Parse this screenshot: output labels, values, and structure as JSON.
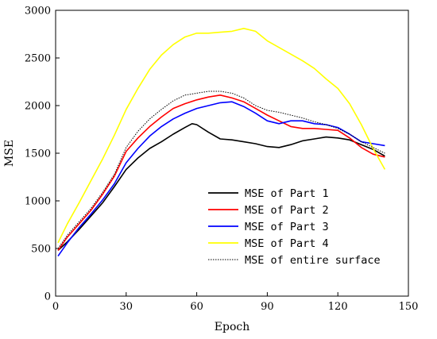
{
  "chart_data": {
    "type": "line",
    "xlabel": "Epoch",
    "ylabel": "MSE",
    "xlim": [
      0,
      150
    ],
    "ylim": [
      0,
      3000
    ],
    "xticks": [
      0,
      30,
      60,
      90,
      120,
      150
    ],
    "yticks": [
      0,
      500,
      1000,
      1500,
      2000,
      2500,
      3000
    ],
    "grid": false,
    "legend_position": "bottom-right",
    "series": [
      {
        "name": "MSE of Part 1",
        "color": "#000000",
        "style": "solid",
        "x": [
          1,
          5,
          10,
          15,
          20,
          25,
          30,
          35,
          40,
          45,
          50,
          55,
          58,
          60,
          65,
          70,
          75,
          80,
          85,
          90,
          95,
          100,
          105,
          110,
          115,
          120,
          125,
          130,
          135,
          140
        ],
        "y": [
          480,
          570,
          700,
          840,
          980,
          1150,
          1330,
          1450,
          1550,
          1620,
          1700,
          1770,
          1810,
          1800,
          1720,
          1650,
          1640,
          1620,
          1600,
          1570,
          1560,
          1590,
          1630,
          1650,
          1670,
          1660,
          1640,
          1590,
          1540,
          1470
        ]
      },
      {
        "name": "MSE of Part 2",
        "color": "#ff0000",
        "style": "solid",
        "x": [
          1,
          5,
          10,
          15,
          20,
          25,
          30,
          35,
          40,
          45,
          50,
          55,
          60,
          65,
          70,
          75,
          80,
          85,
          90,
          95,
          100,
          105,
          110,
          115,
          120,
          125,
          130,
          135,
          140
        ],
        "y": [
          480,
          620,
          760,
          900,
          1070,
          1260,
          1520,
          1660,
          1780,
          1880,
          1970,
          2020,
          2060,
          2090,
          2110,
          2080,
          2040,
          1970,
          1900,
          1840,
          1780,
          1760,
          1760,
          1750,
          1740,
          1660,
          1560,
          1490,
          1460
        ]
      },
      {
        "name": "MSE of Part 3",
        "color": "#0000ff",
        "style": "solid",
        "x": [
          1,
          5,
          10,
          15,
          20,
          25,
          30,
          35,
          40,
          45,
          50,
          55,
          60,
          65,
          70,
          75,
          80,
          85,
          90,
          95,
          100,
          105,
          110,
          115,
          120,
          125,
          130,
          135,
          140
        ],
        "y": [
          420,
          560,
          720,
          860,
          1010,
          1180,
          1400,
          1550,
          1680,
          1780,
          1860,
          1920,
          1970,
          2000,
          2030,
          2040,
          1990,
          1920,
          1840,
          1810,
          1840,
          1840,
          1810,
          1800,
          1770,
          1700,
          1620,
          1600,
          1580
        ]
      },
      {
        "name": "MSE of Part 4",
        "color": "#ffff00",
        "style": "solid",
        "x": [
          1,
          5,
          10,
          15,
          20,
          25,
          30,
          35,
          40,
          45,
          50,
          55,
          60,
          65,
          70,
          75,
          80,
          85,
          90,
          95,
          100,
          105,
          110,
          115,
          120,
          125,
          130,
          135,
          140
        ],
        "y": [
          560,
          760,
          980,
          1210,
          1440,
          1690,
          1960,
          2180,
          2380,
          2530,
          2640,
          2720,
          2760,
          2760,
          2770,
          2780,
          2810,
          2780,
          2680,
          2610,
          2540,
          2470,
          2390,
          2280,
          2180,
          2020,
          1800,
          1550,
          1330
        ]
      },
      {
        "name": "MSE of entire surface",
        "color": "#000000",
        "style": "dotted",
        "x": [
          1,
          5,
          10,
          15,
          20,
          25,
          30,
          35,
          40,
          45,
          50,
          55,
          60,
          65,
          70,
          75,
          80,
          85,
          90,
          95,
          100,
          105,
          110,
          115,
          120,
          125,
          130,
          135,
          140
        ],
        "y": [
          500,
          640,
          780,
          920,
          1090,
          1280,
          1560,
          1730,
          1860,
          1960,
          2050,
          2110,
          2130,
          2150,
          2150,
          2130,
          2080,
          2000,
          1950,
          1930,
          1900,
          1870,
          1830,
          1800,
          1760,
          1700,
          1620,
          1560,
          1500
        ]
      }
    ]
  }
}
